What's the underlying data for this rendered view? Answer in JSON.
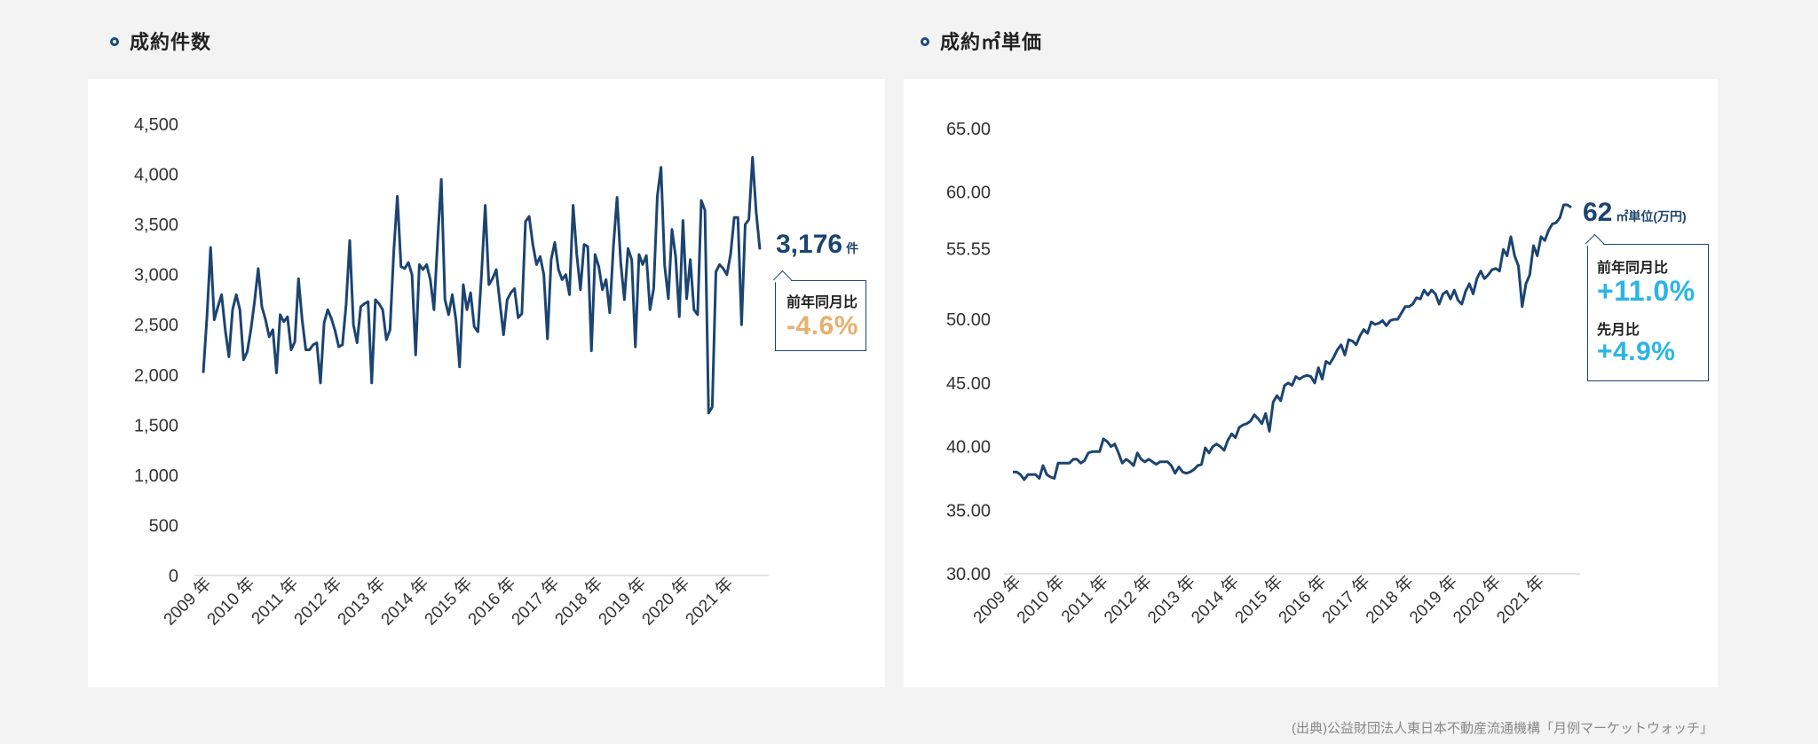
{
  "charts": [
    {
      "heading": "成約件数",
      "callout": {
        "value": "3,176",
        "unit": "件",
        "yoy_label": "前年同月比",
        "yoy_value": "-4.6%",
        "yoy_color": "#e8b06b"
      }
    },
    {
      "heading": "成約㎡単価",
      "callout": {
        "value": "62",
        "unit": "㎡単位(万円)",
        "yoy_label": "前年同月比",
        "yoy_value": "+11.0%",
        "yoy_color": "#2bb5e6",
        "mom_label": "先月比",
        "mom_value": "+4.9%",
        "mom_color": "#2bb5e6"
      }
    }
  ],
  "chart_data": [
    {
      "type": "line",
      "title": "成約件数",
      "xlabel": "",
      "ylabel": "",
      "ylim": [
        0,
        4500
      ],
      "y_ticks": [
        "0",
        "500",
        "1,000",
        "1,500",
        "2,000",
        "2,500",
        "3,000",
        "3,500",
        "4,000",
        "4,500"
      ],
      "x_tick_labels": [
        "2009 年",
        "2010 年",
        "2011 年",
        "2012 年",
        "2013 年",
        "2014 年",
        "2015 年",
        "2016 年",
        "2017 年",
        "2018 年",
        "2019 年",
        "2020 年",
        "2021 年"
      ],
      "grid": false,
      "series": [
        {
          "color": "#1c4470",
          "values": [
            2020,
            2580,
            3270,
            2550,
            2680,
            2800,
            2450,
            2180,
            2650,
            2800,
            2650,
            2150,
            2230,
            2450,
            2730,
            3060,
            2680,
            2550,
            2380,
            2450,
            2020,
            2600,
            2530,
            2580,
            2250,
            2330,
            2960,
            2550,
            2250,
            2250,
            2300,
            2320,
            1920,
            2520,
            2650,
            2560,
            2440,
            2280,
            2300,
            2700,
            3340,
            2500,
            2320,
            2680,
            2710,
            2730,
            1920,
            2750,
            2710,
            2650,
            2350,
            2450,
            3220,
            3780,
            3080,
            3060,
            3120,
            3000,
            2200,
            3100,
            3050,
            3100,
            2950,
            2650,
            3340,
            3950,
            2750,
            2600,
            2800,
            2550,
            2080,
            2900,
            2650,
            2820,
            2480,
            2430,
            3010,
            3690,
            2900,
            2960,
            3050,
            2720,
            2400,
            2750,
            2820,
            2860,
            2570,
            2610,
            3530,
            3580,
            3300,
            3100,
            3180,
            3000,
            2360,
            3150,
            3320,
            3050,
            2950,
            3000,
            2800,
            3690,
            3200,
            2850,
            3300,
            3280,
            2240,
            3200,
            3080,
            2850,
            2950,
            2620,
            3280,
            3770,
            3120,
            2750,
            3260,
            3150,
            2280,
            3200,
            3100,
            3190,
            2650,
            2860,
            3780,
            4070,
            3090,
            2760,
            3450,
            3180,
            2580,
            3540,
            2760,
            3150,
            2650,
            2600,
            3740,
            3640,
            1620,
            1680,
            3030,
            3100,
            3060,
            3000,
            3200,
            3570,
            3570,
            2500,
            3500,
            3550,
            4170,
            3620,
            3250
          ]
        }
      ]
    },
    {
      "type": "line",
      "title": "成約㎡単価",
      "xlabel": "",
      "ylabel": "",
      "ylim": [
        30,
        65
      ],
      "y_ticks": [
        "30.00",
        "35.00",
        "40.00",
        "45.00",
        "50.00",
        "55.55",
        "60.00",
        "65.00"
      ],
      "x_tick_labels": [
        "2009 年",
        "2010 年",
        "2011 年",
        "2012 年",
        "2013 年",
        "2014 年",
        "2015 年",
        "2016 年",
        "2017 年",
        "2018 年",
        "2019 年",
        "2020 年",
        "2021 年"
      ],
      "grid": false,
      "series": [
        {
          "color": "#1c4470",
          "values": [
            38.0,
            38.0,
            37.8,
            37.4,
            37.8,
            37.8,
            37.8,
            37.5,
            38.5,
            37.8,
            37.6,
            37.5,
            38.7,
            38.7,
            38.7,
            38.7,
            39.0,
            39.0,
            38.7,
            38.9,
            39.5,
            39.6,
            39.6,
            39.6,
            40.6,
            40.4,
            40.0,
            40.2,
            39.5,
            38.7,
            39.0,
            38.8,
            38.5,
            39.5,
            39.0,
            38.8,
            39.0,
            38.8,
            38.6,
            38.8,
            38.8,
            38.8,
            38.5,
            37.9,
            38.4,
            38.0,
            37.9,
            38.0,
            38.2,
            38.5,
            38.6,
            39.9,
            39.5,
            40.0,
            40.2,
            40.0,
            39.7,
            40.5,
            41.0,
            40.7,
            41.5,
            41.7,
            41.8,
            42.0,
            42.5,
            42.2,
            41.8,
            42.6,
            41.2,
            43.5,
            44.0,
            43.6,
            44.8,
            45.0,
            44.8,
            45.5,
            45.3,
            45.5,
            45.6,
            45.5,
            45.0,
            46.2,
            45.3,
            46.7,
            46.5,
            47.0,
            47.6,
            48.0,
            47.2,
            48.4,
            48.3,
            48.0,
            48.7,
            49.2,
            48.9,
            49.8,
            49.6,
            49.7,
            49.9,
            49.5,
            49.9,
            50.0,
            50.0,
            50.5,
            51.0,
            51.0,
            51.2,
            51.7,
            51.6,
            52.3,
            51.9,
            52.3,
            52.0,
            51.2,
            52.0,
            52.2,
            51.6,
            52.3,
            51.5,
            51.2,
            52.2,
            52.8,
            52.0,
            53.2,
            53.8,
            53.2,
            53.5,
            53.9,
            54.0,
            53.8,
            55.5,
            55.0,
            56.5,
            55.0,
            54.2,
            51.0,
            52.8,
            53.5,
            55.8,
            55.0,
            56.5,
            56.2,
            57.0,
            57.5,
            57.6,
            58.0,
            59.0,
            59.0,
            58.8
          ]
        }
      ]
    }
  ],
  "source": "(出典)公益財団法人東日本不動産流通機構「月例マーケットウォッチ」"
}
